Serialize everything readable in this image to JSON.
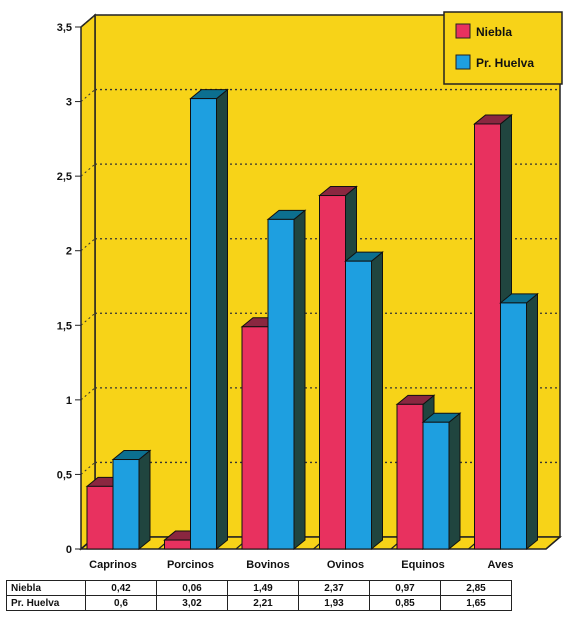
{
  "chart_data": {
    "type": "bar",
    "categories": [
      "Caprinos",
      "Porcinos",
      "Bovinos",
      "Ovinos",
      "Equinos",
      "Aves"
    ],
    "series": [
      {
        "name": "Niebla",
        "values": [
          0.42,
          0.06,
          1.49,
          2.37,
          0.97,
          2.85
        ],
        "color": "#e8315f",
        "top_color": "#8a2740"
      },
      {
        "name": "Pr. Huelva",
        "values": [
          0.6,
          3.02,
          2.21,
          1.93,
          0.85,
          1.65
        ],
        "color": "#1e9fe0",
        "top_color": "#0c6f90"
      }
    ],
    "ylim": [
      0,
      3.5
    ],
    "yticks": [
      "0",
      "0,5",
      "1",
      "1,5",
      "2",
      "2,5",
      "3",
      "3,5"
    ],
    "grid": true,
    "legend": "top-right",
    "background_color": "#f7d318",
    "side_color": "#20453f"
  },
  "table": {
    "rows": [
      {
        "label": "Niebla",
        "values": [
          "0,42",
          "0,06",
          "1,49",
          "2,37",
          "0,97",
          "2,85"
        ]
      },
      {
        "label": "Pr. Huelva",
        "values": [
          "0,6",
          "3,02",
          "2,21",
          "1,93",
          "0,85",
          "1,65"
        ]
      }
    ]
  }
}
